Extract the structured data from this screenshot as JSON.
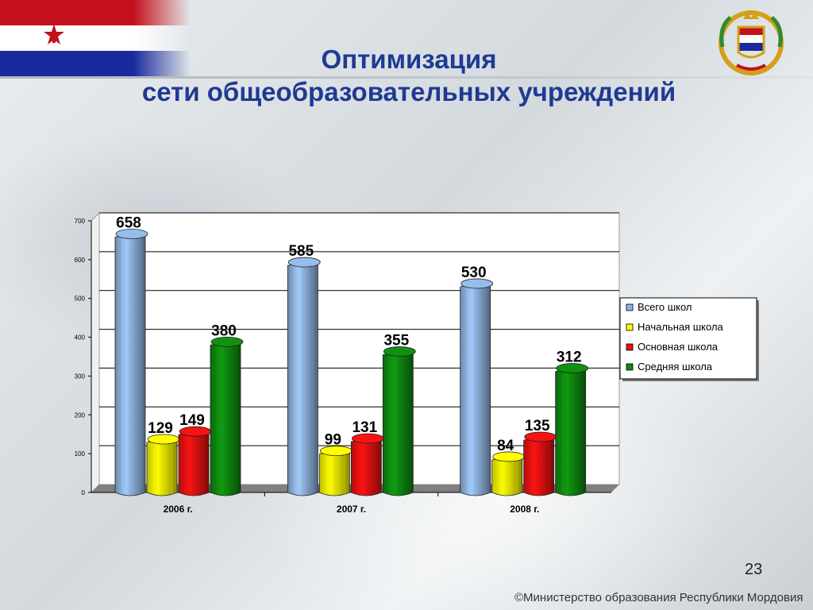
{
  "slide": {
    "title_line1": "Оптимизация",
    "title_line2": "сети общеобразовательных учреждений",
    "page_number": "23",
    "copyright": "©Министерство образования Республики Мордовия"
  },
  "colors": {
    "title": "#1f3a93",
    "flag_red": "#c4101c",
    "flag_white": "#ffffff",
    "flag_blue": "#1a2a9c",
    "series": [
      "#8fb4e3",
      "#ffff00",
      "#ee1111",
      "#0f8a10"
    ]
  },
  "chart_data": {
    "type": "bar",
    "categories": [
      "2006 г.",
      "2007 г.",
      "2008 г."
    ],
    "series": [
      {
        "name": "Всего школ",
        "values": [
          658,
          585,
          530
        ]
      },
      {
        "name": "Начальная школа",
        "values": [
          129,
          99,
          84
        ]
      },
      {
        "name": "Основная школа",
        "values": [
          149,
          131,
          135
        ]
      },
      {
        "name": "Средняя школа",
        "values": [
          380,
          355,
          312
        ]
      }
    ],
    "ylim": [
      0,
      700
    ],
    "yticks": [
      "0",
      "100",
      "200",
      "300",
      "400",
      "500",
      "600",
      "700"
    ],
    "grid": true,
    "legend_position": "right"
  }
}
